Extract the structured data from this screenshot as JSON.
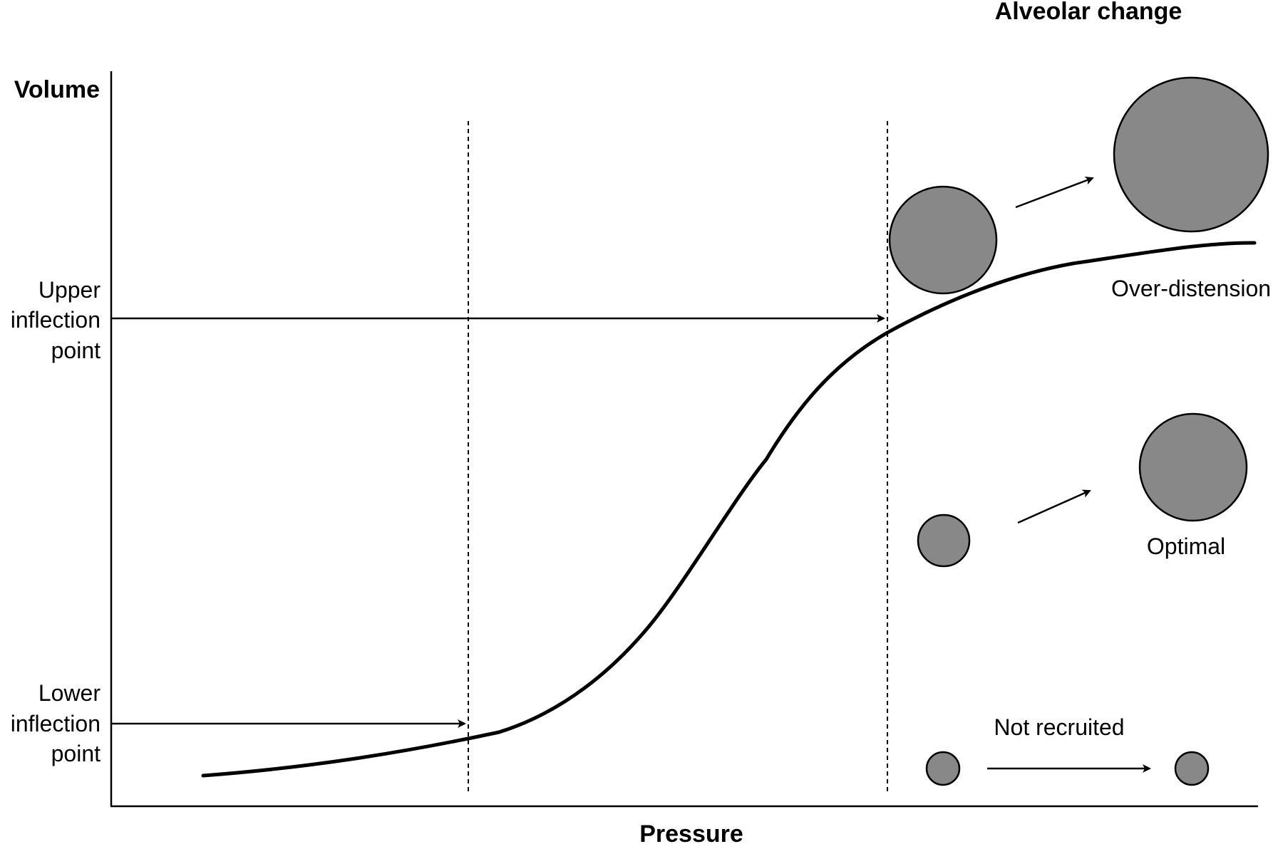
{
  "title": "Alveolar change",
  "axes": {
    "y_label": "Volume",
    "x_label": "Pressure"
  },
  "inflection_points": {
    "upper": [
      "Upper",
      "inflection",
      "point"
    ],
    "lower": [
      "Lower",
      "inflection",
      "point"
    ]
  },
  "alveolar_states": {
    "over_distension": "Over-distension",
    "optimal": "Optimal",
    "not_recruited": "Not recruited"
  },
  "colors": {
    "alveolus_fill": "#888888",
    "stroke": "#000000",
    "background": "#ffffff"
  }
}
